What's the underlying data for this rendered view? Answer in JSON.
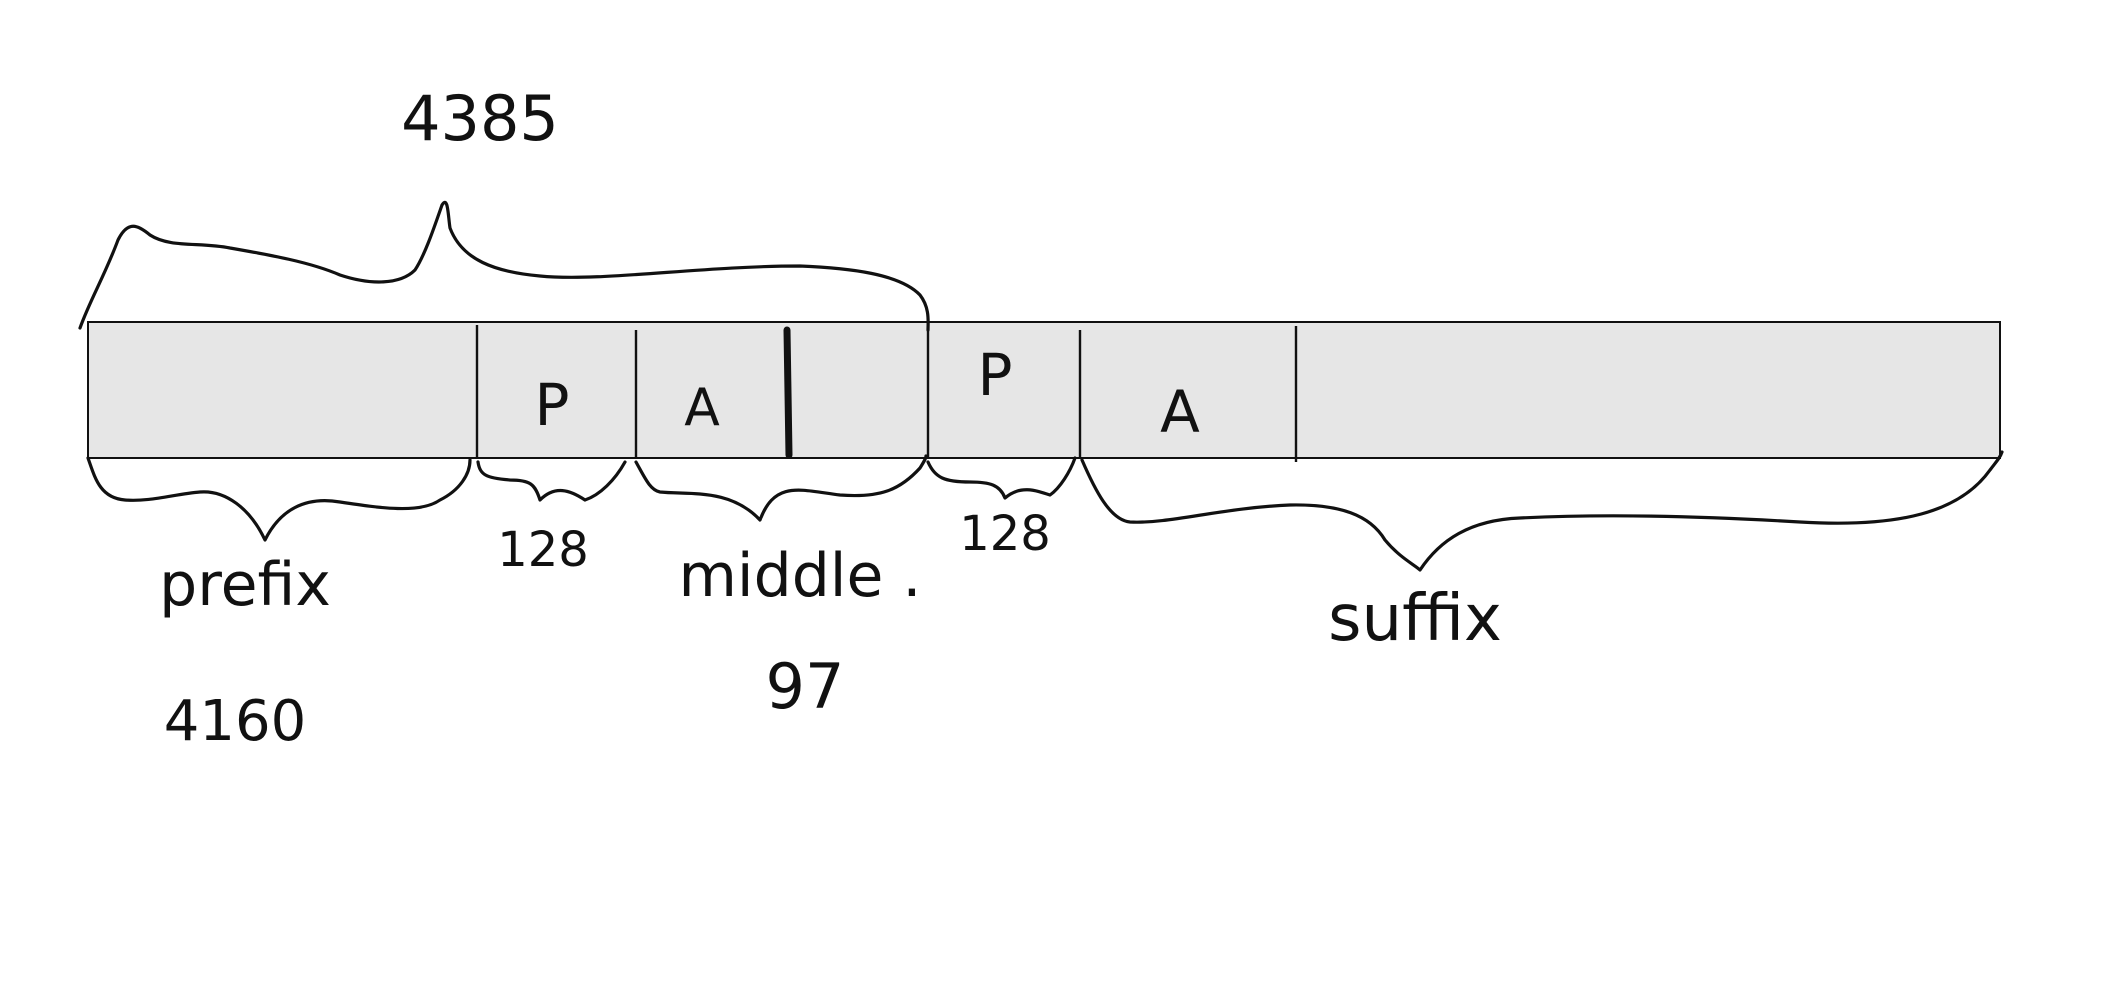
{
  "diagram": {
    "top_total": "4385",
    "segments": [
      {
        "key": "prefix",
        "cell_label": "",
        "brace_label": "prefix",
        "value": "4160"
      },
      {
        "key": "p1",
        "cell_label": "P",
        "brace_label": "",
        "value": "128"
      },
      {
        "key": "a1",
        "cell_label": "A",
        "brace_label": "middle .",
        "value": "97"
      },
      {
        "key": "p2",
        "cell_label": "P",
        "brace_label": "",
        "value": "128"
      },
      {
        "key": "a2",
        "cell_label": "A",
        "brace_label": "",
        "value": ""
      },
      {
        "key": "suffix",
        "cell_label": "",
        "brace_label": "suffix",
        "value": ""
      }
    ],
    "colors": {
      "bar_fill": "#e6e6e6",
      "ink": "#111111",
      "background": "#ffffff"
    }
  }
}
